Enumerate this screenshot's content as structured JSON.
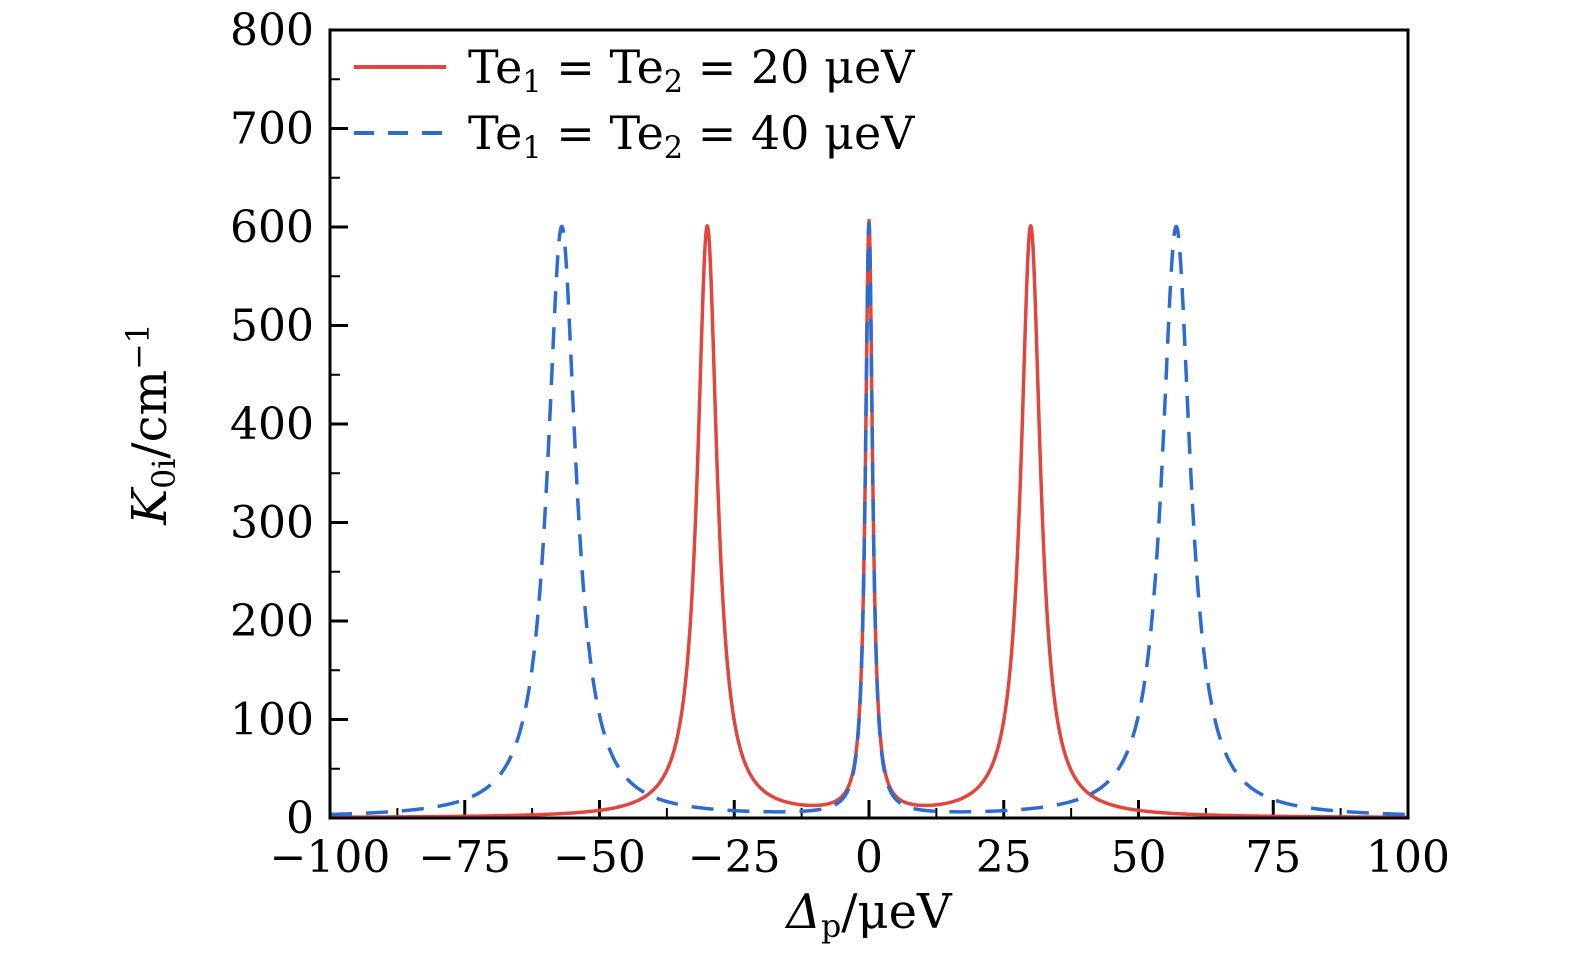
{
  "figure": {
    "background": "#ffffff",
    "axes": {
      "x": {
        "sym": "Δ",
        "sub": "p",
        "unit": "/μeV"
      },
      "y": {
        "sym": "K",
        "sub": "0i",
        "unit": "/cm",
        "sup": "−1"
      }
    },
    "legend": {
      "items": [
        {
          "pre": "Te",
          "sub1": "1",
          "mid": " = Te",
          "sub2": "2",
          "post": " = 20 μeV"
        },
        {
          "pre": "Te",
          "sub1": "1",
          "mid": " = Te",
          "sub2": "2",
          "post": " = 40 μeV"
        }
      ]
    }
  },
  "chart_data": {
    "type": "line",
    "title": "",
    "xlabel": "Δ_p/μeV",
    "ylabel": "K_0i/cm^−1",
    "xlim": [
      -100,
      100
    ],
    "ylim": [
      0,
      800
    ],
    "xticks": [
      -100,
      -75,
      -50,
      -25,
      0,
      25,
      50,
      75,
      100
    ],
    "yticks": [
      0,
      100,
      200,
      300,
      400,
      500,
      600,
      700,
      800
    ],
    "x_minor_step": 12.5,
    "y_minor_step": 50,
    "grid": false,
    "legend_position": "upper-left",
    "series": [
      {
        "name": "Te1 = Te2 = 20 μeV",
        "color": "#e0463e",
        "style": "solid",
        "peak_model": "lorentzian",
        "peak_amplitude": 600,
        "peaks": [
          {
            "center": -30,
            "amplitude": 600,
            "hwhm": 2.2
          },
          {
            "center": 0,
            "amplitude": 600,
            "hwhm": 0.8
          },
          {
            "center": 30,
            "amplitude": 600,
            "hwhm": 2.2
          }
        ]
      },
      {
        "name": "Te1 = Te2 = 40 μeV",
        "color": "#2c6bd0",
        "style": "dashed",
        "peak_model": "lorentzian",
        "peak_amplitude": 600,
        "peaks": [
          {
            "center": -57,
            "amplitude": 600,
            "hwhm": 3.2
          },
          {
            "center": 0,
            "amplitude": 600,
            "hwhm": 0.8
          },
          {
            "center": 57,
            "amplitude": 600,
            "hwhm": 3.2
          }
        ]
      }
    ]
  }
}
